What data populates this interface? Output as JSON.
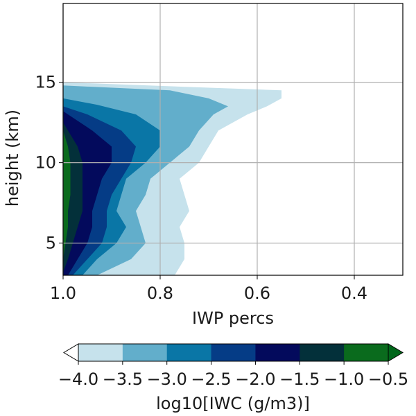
{
  "chart_data": {
    "type": "contour",
    "xlabel": "IWP percs",
    "ylabel": "height (km)",
    "xlim": [
      1.0,
      0.3
    ],
    "ylim": [
      3,
      19.9
    ],
    "x_ticks": [
      {
        "value": 1.0,
        "label": "1.0"
      },
      {
        "value": 0.8,
        "label": "0.8"
      },
      {
        "value": 0.6,
        "label": "0.6"
      },
      {
        "value": 0.4,
        "label": "0.4"
      }
    ],
    "y_ticks": [
      {
        "value": 5,
        "label": "5"
      },
      {
        "value": 10,
        "label": "10"
      },
      {
        "value": 15,
        "label": "15"
      }
    ],
    "grid": true,
    "colorbar": {
      "label": "log10[IWC (g/m3)]",
      "ticks": [
        "−4.0",
        "−3.5",
        "−3.0",
        "−2.5",
        "−2.0",
        "−1.5",
        "−1.0",
        "−0.5"
      ],
      "extend": "both",
      "under_color": "#ffffff",
      "over_color": "#00661a"
    },
    "levels": [
      {
        "min": -4.0,
        "max": -3.5,
        "color": "#c6e2ec",
        "upper_iwp": [
          [
            3.0,
            0.77
          ],
          [
            4.0,
            0.75
          ],
          [
            5.0,
            0.75
          ],
          [
            6.0,
            0.76
          ],
          [
            7.0,
            0.74
          ],
          [
            8.0,
            0.75
          ],
          [
            9.0,
            0.76
          ],
          [
            10.0,
            0.72
          ],
          [
            11.0,
            0.7
          ],
          [
            12.0,
            0.68
          ],
          [
            13.0,
            0.62
          ],
          [
            13.5,
            0.58
          ],
          [
            14.0,
            0.55
          ],
          [
            14.5,
            0.55
          ],
          [
            15.0,
            1.0
          ]
        ]
      },
      {
        "min": -3.5,
        "max": -3.0,
        "color": "#62aecb",
        "upper_iwp": [
          [
            3.0,
            0.93
          ],
          [
            4.0,
            0.86
          ],
          [
            5.0,
            0.83
          ],
          [
            6.0,
            0.84
          ],
          [
            7.0,
            0.85
          ],
          [
            8.0,
            0.83
          ],
          [
            9.0,
            0.82
          ],
          [
            10.0,
            0.78
          ],
          [
            11.0,
            0.74
          ],
          [
            12.0,
            0.72
          ],
          [
            13.0,
            0.69
          ],
          [
            13.5,
            0.66
          ],
          [
            14.0,
            0.7
          ],
          [
            14.5,
            0.78
          ],
          [
            14.8,
            1.0
          ]
        ]
      },
      {
        "min": -3.0,
        "max": -2.5,
        "color": "#0a76a6",
        "upper_iwp": [
          [
            3.0,
            0.96
          ],
          [
            4.0,
            0.93
          ],
          [
            5.0,
            0.89
          ],
          [
            6.0,
            0.87
          ],
          [
            7.0,
            0.89
          ],
          [
            8.0,
            0.88
          ],
          [
            9.0,
            0.87
          ],
          [
            10.0,
            0.83
          ],
          [
            11.0,
            0.8
          ],
          [
            12.0,
            0.8
          ],
          [
            13.0,
            0.85
          ],
          [
            13.6,
            0.93
          ],
          [
            14.0,
            1.0
          ]
        ]
      },
      {
        "min": -2.5,
        "max": -2.0,
        "color": "#053c86",
        "upper_iwp": [
          [
            3.0,
            0.98
          ],
          [
            4.0,
            0.95
          ],
          [
            5.0,
            0.92
          ],
          [
            6.0,
            0.91
          ],
          [
            7.0,
            0.91
          ],
          [
            8.0,
            0.9
          ],
          [
            9.0,
            0.88
          ],
          [
            10.0,
            0.86
          ],
          [
            11.0,
            0.85
          ],
          [
            12.0,
            0.88
          ],
          [
            13.0,
            0.95
          ],
          [
            13.5,
            1.0
          ]
        ]
      },
      {
        "min": -2.0,
        "max": -1.5,
        "color": "#030a5c",
        "upper_iwp": [
          [
            3.0,
            0.99
          ],
          [
            4.0,
            0.97
          ],
          [
            5.0,
            0.95
          ],
          [
            6.0,
            0.94
          ],
          [
            7.0,
            0.94
          ],
          [
            8.0,
            0.93
          ],
          [
            9.0,
            0.92
          ],
          [
            10.0,
            0.9
          ],
          [
            11.0,
            0.9
          ],
          [
            12.0,
            0.94
          ],
          [
            13.0,
            0.99
          ],
          [
            13.2,
            1.0
          ]
        ]
      },
      {
        "min": -1.5,
        "max": -1.0,
        "color": "#03303a",
        "upper_iwp": [
          [
            3.2,
            1.0
          ],
          [
            4.0,
            0.99
          ],
          [
            5.0,
            0.98
          ],
          [
            6.0,
            0.97
          ],
          [
            7.0,
            0.96
          ],
          [
            8.0,
            0.96
          ],
          [
            9.0,
            0.96
          ],
          [
            10.0,
            0.96
          ],
          [
            11.0,
            0.97
          ],
          [
            12.0,
            0.99
          ],
          [
            12.5,
            1.0
          ]
        ]
      },
      {
        "min": -1.0,
        "max": -0.5,
        "color": "#0a6b1d",
        "upper_iwp": [
          [
            4.0,
            1.0
          ],
          [
            5.0,
            0.995
          ],
          [
            6.0,
            0.99
          ],
          [
            7.0,
            0.99
          ],
          [
            8.0,
            0.985
          ],
          [
            9.0,
            0.985
          ],
          [
            10.0,
            0.985
          ],
          [
            11.0,
            0.99
          ],
          [
            11.5,
            0.995
          ],
          [
            12.0,
            1.0
          ]
        ]
      }
    ]
  }
}
